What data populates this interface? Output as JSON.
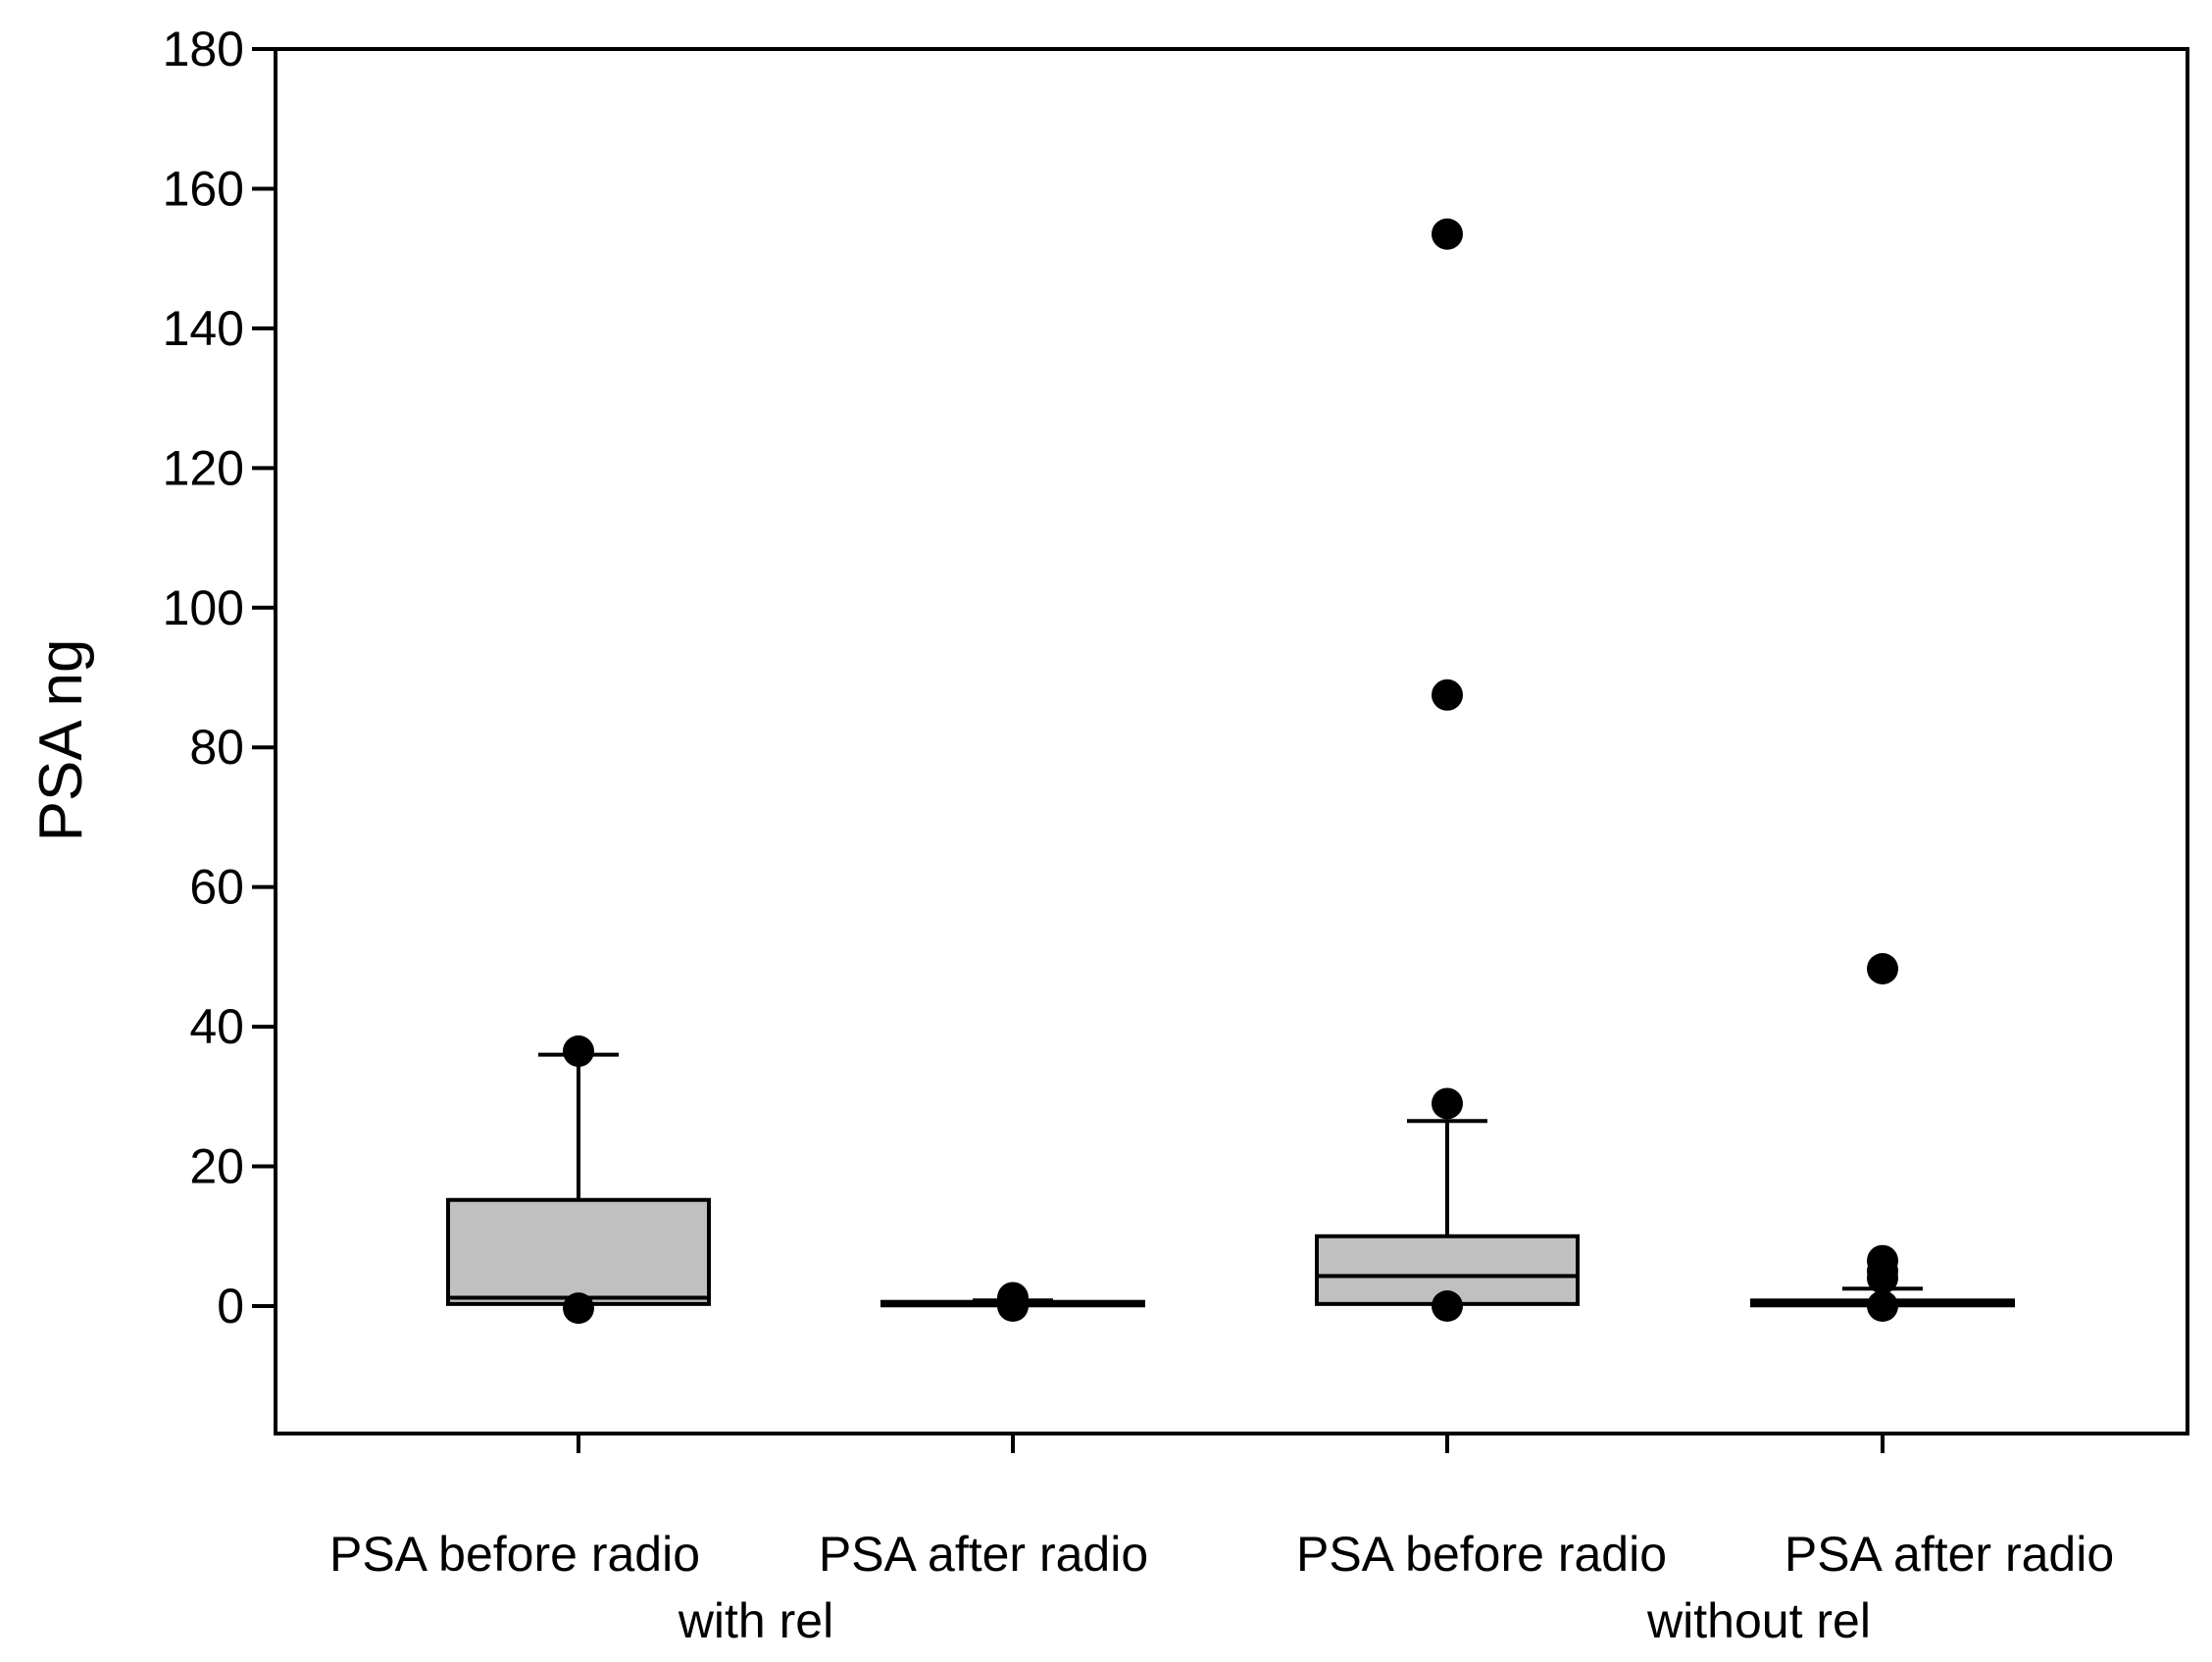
{
  "chart_data": {
    "type": "box",
    "ylabel": "PSA ng",
    "ylim": [
      -18,
      180
    ],
    "yticks": [
      0,
      20,
      40,
      60,
      80,
      100,
      120,
      140,
      160,
      180
    ],
    "grid": false,
    "legend": "none",
    "box_fill": "#c0c0c0",
    "categories": [
      "PSA before radio",
      "PSA after  radio",
      "PSA before radio",
      "PSA after  radio"
    ],
    "group_labels": [
      "with rel",
      "without rel"
    ],
    "series": [
      {
        "category": "PSA before radio",
        "group": "with rel",
        "whisker_low": 0.2,
        "q1": 0.3,
        "median": 1.2,
        "q3": 15.2,
        "whisker_high": 36,
        "outliers": [
          36.5,
          -0.3
        ]
      },
      {
        "category": "PSA after  radio",
        "group": "with rel",
        "whisker_low": 0,
        "q1": 0.1,
        "median": 0.3,
        "q3": 0.6,
        "whisker_high": 0.8,
        "outliers": [
          1.2,
          0
        ]
      },
      {
        "category": "PSA before radio",
        "group": "without rel",
        "whisker_low": 0.2,
        "q1": 0.3,
        "median": 4.3,
        "q3": 10,
        "whisker_high": 26.5,
        "outliers": [
          153.5,
          87.5,
          29,
          0
        ]
      },
      {
        "category": "PSA after  radio",
        "group": "without rel",
        "whisker_low": 0,
        "q1": 0.1,
        "median": 0.3,
        "q3": 0.8,
        "whisker_high": 2.5,
        "outliers": [
          48.3,
          6.5,
          5,
          4,
          0
        ]
      }
    ]
  }
}
